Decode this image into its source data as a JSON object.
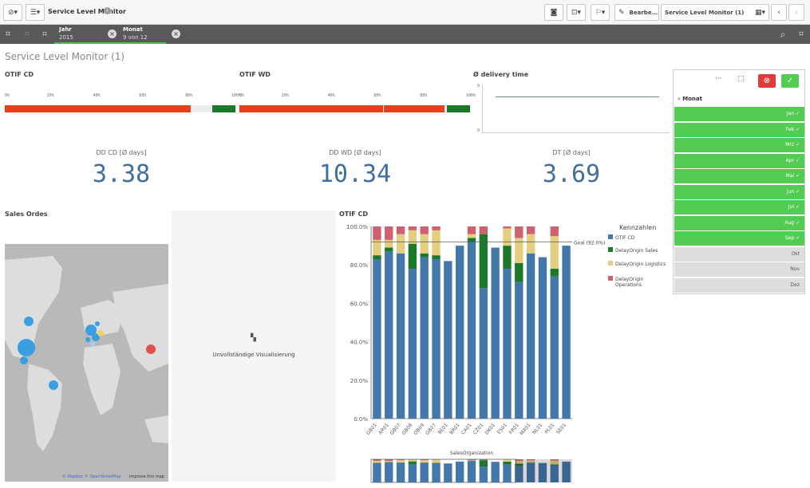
{
  "toolbar": {
    "app_title": "Service Level Monitor",
    "edit_label": "Bearbe...",
    "sheet_selector": "Service Level Monitor (1)"
  },
  "selections": [
    {
      "field": "Jahr",
      "value": "2015"
    },
    {
      "field": "Monat",
      "value": "9 von 12"
    }
  ],
  "sheet_title": "Service Level Monitor (1)",
  "otif_cd": {
    "title": "OTIF CD",
    "ticks": [
      "0%",
      "20%",
      "40%",
      "60%",
      "80%",
      "100%"
    ],
    "red_pct": 0.81,
    "green_pct": 0.1
  },
  "otif_wd": {
    "title": "OTIF WD",
    "ticks": [
      "0%",
      "20%",
      "40%",
      "60%",
      "80%",
      "100%"
    ],
    "red_pct": 0.89,
    "green_pct": 0.1
  },
  "delivery_time": {
    "title": "Ø delivery time",
    "y_top": "0",
    "y_bottom": "0"
  },
  "kpis": [
    {
      "label": "DD CD [Ø days]",
      "value": "3.38"
    },
    {
      "label": "DD WD [Ø days]",
      "value": "10.34"
    },
    {
      "label": "DT [Ø days]",
      "value": "3.69"
    }
  ],
  "sales_orders": {
    "title": "Sales Ordes",
    "attribution": "© Mapbox © OpenStreetMap",
    "improve": "Improve this map"
  },
  "incomplete": {
    "text": "Unvollständige Visualisierung"
  },
  "filter": {
    "search_label": "Monat",
    "items": [
      {
        "label": "Jan",
        "selected": true
      },
      {
        "label": "Feb",
        "selected": true
      },
      {
        "label": "Mrz",
        "selected": true
      },
      {
        "label": "Apr",
        "selected": true
      },
      {
        "label": "Mai",
        "selected": true
      },
      {
        "label": "Jun",
        "selected": true
      },
      {
        "label": "Jul",
        "selected": true
      },
      {
        "label": "Aug",
        "selected": true
      },
      {
        "label": "Sep",
        "selected": true
      },
      {
        "label": "Okt",
        "selected": false
      },
      {
        "label": "Nov",
        "selected": false
      },
      {
        "label": "Dez",
        "selected": false
      }
    ]
  },
  "colors": {
    "blue": "#4477aa",
    "green": "#1a7a2a",
    "yellow": "#e3cf7f",
    "pink": "#cf6070",
    "red": "#e8401c",
    "select_green": "#52cc52"
  },
  "chart_data": {
    "type": "bar",
    "title": "OTIF CD",
    "xlabel": "SalesOrganization",
    "ylim": [
      0,
      100
    ],
    "yticks": [
      "0.0%",
      "20.0%",
      "40.0%",
      "60.0%",
      "80.0%",
      "100.0%"
    ],
    "goal_label": "Goal (92.0%)",
    "goal_value": 92,
    "legend_title": "Kennzahlen",
    "categories": [
      "GB01",
      "AR01",
      "GB07",
      "GB08",
      "GB09",
      "GB27",
      "BE01",
      "BR01",
      "CA01",
      "CZ01",
      "DK01",
      "ES01",
      "FR01",
      "MX01",
      "NL01",
      "PL01",
      "SE01"
    ],
    "series": [
      {
        "name": "OTIF CD",
        "values": [
          83,
          87,
          86,
          78,
          84,
          83,
          82,
          90,
          92,
          68,
          89,
          78,
          71,
          86,
          84,
          74,
          90
        ]
      },
      {
        "name": "DelayOrigin Sales",
        "values": [
          2,
          2,
          0,
          13,
          2,
          2,
          0,
          0,
          2,
          28,
          0,
          12,
          10,
          0,
          0,
          4,
          0
        ]
      },
      {
        "name": "DelayOrigin Logistics",
        "values": [
          8,
          4,
          10,
          7,
          10,
          13,
          0,
          0,
          2,
          0,
          0,
          9,
          13,
          10,
          0,
          17,
          0
        ]
      },
      {
        "name": "DelayOrigin Operations",
        "values": [
          7,
          7,
          4,
          2,
          4,
          2,
          0,
          0,
          4,
          4,
          0,
          1,
          6,
          4,
          0,
          5,
          0
        ]
      }
    ]
  }
}
